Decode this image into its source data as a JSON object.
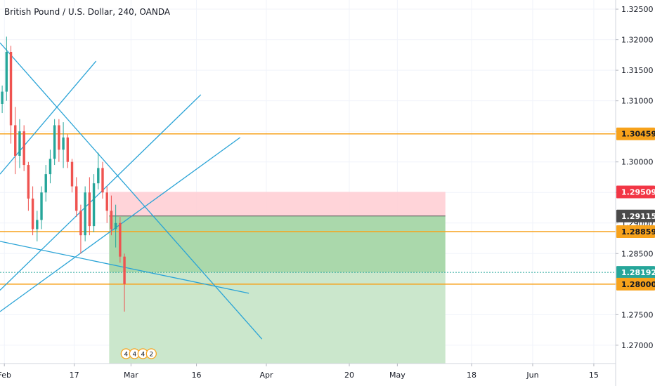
{
  "chart_data": {
    "type": "candlestick",
    "title": "British Pound / U.S. Dollar, 240, OANDA",
    "x_ticks": [
      {
        "date": "2020-02-01",
        "label": "Feb"
      },
      {
        "date": "2020-02-17",
        "label": "17"
      },
      {
        "date": "2020-03-01",
        "label": "Mar"
      },
      {
        "date": "2020-03-16",
        "label": "16"
      },
      {
        "date": "2020-04-01",
        "label": "Apr"
      },
      {
        "date": "2020-04-20",
        "label": "20"
      },
      {
        "date": "2020-05-01",
        "label": "May"
      },
      {
        "date": "2020-05-18",
        "label": "18"
      },
      {
        "date": "2020-06-01",
        "label": "Jun"
      },
      {
        "date": "2020-06-15",
        "label": "15"
      }
    ],
    "xlim": [
      "2020-01-31",
      "2020-06-20"
    ],
    "ylim": [
      1.267,
      1.3265
    ],
    "y_ticks": [
      {
        "value": 1.27,
        "label": "1.27000"
      },
      {
        "value": 1.275,
        "label": "1.27500"
      },
      {
        "value": 1.28,
        "label": "1.28000"
      },
      {
        "value": 1.285,
        "label": "1.28500"
      },
      {
        "value": 1.29,
        "label": "1.29000"
      },
      {
        "value": 1.295,
        "label": "1.29500"
      },
      {
        "value": 1.3,
        "label": "1.30000"
      },
      {
        "value": 1.305,
        "label": "1.30500"
      },
      {
        "value": 1.31,
        "label": "1.31000"
      },
      {
        "value": 1.315,
        "label": "1.31500"
      },
      {
        "value": 1.32,
        "label": "1.32000"
      },
      {
        "value": 1.325,
        "label": "1.32500"
      }
    ],
    "grid": true,
    "price_labels": [
      {
        "value": 1.30459,
        "label": "1.30459",
        "color": "#f7a21b",
        "text_color": "#131722"
      },
      {
        "value": 1.29509,
        "label": "1.29509",
        "color": "#f23645",
        "text_color": "#ffffff"
      },
      {
        "value": 1.29115,
        "label": "1.29115",
        "color": "#4a4a4a",
        "text_color": "#ffffff"
      },
      {
        "value": 1.28859,
        "label": "1.28859",
        "color": "#f7a21b",
        "text_color": "#131722"
      },
      {
        "value": 1.28192,
        "label": "1.28192",
        "color": "#26a69a",
        "text_color": "#ffffff"
      },
      {
        "value": 1.28,
        "label": "1.28000",
        "color": "#f7a21b",
        "text_color": "#131722"
      }
    ],
    "horizontal_levels": [
      {
        "value": 1.30459,
        "color": "#f7a21b",
        "style": "solid"
      },
      {
        "value": 1.28859,
        "color": "#f7a21b",
        "style": "solid"
      },
      {
        "value": 1.28,
        "color": "#f7a21b",
        "style": "solid"
      },
      {
        "value": 1.28192,
        "color": "#26a69a",
        "style": "dotted"
      }
    ],
    "position_box": {
      "start": "2020-02-25",
      "end": "2020-05-12",
      "entry": 1.29115,
      "stop": 1.29509,
      "target_1": 1.28192,
      "target_2": 1.267,
      "stop_color": "#ffcdd2",
      "target_color": "#a5d6a7",
      "target_color_2": "#c8e6c9"
    },
    "trend_lines": [
      {
        "x1": "2020-01-31",
        "y1": 1.3195,
        "x2": "2020-03-31",
        "y2": 1.271,
        "color": "#29a3d6"
      },
      {
        "x1": "2020-01-31",
        "y1": 1.298,
        "x2": "2020-02-22",
        "y2": 1.3165,
        "color": "#29a3d6"
      },
      {
        "x1": "2020-01-31",
        "y1": 1.279,
        "x2": "2020-03-17",
        "y2": 1.311,
        "color": "#29a3d6"
      },
      {
        "x1": "2020-01-31",
        "y1": 1.2755,
        "x2": "2020-03-26",
        "y2": 1.304,
        "color": "#29a3d6"
      },
      {
        "x1": "2020-01-31",
        "y1": 1.287,
        "x2": "2020-03-28",
        "y2": 1.2785,
        "color": "#29a3d6"
      }
    ],
    "candles": [
      {
        "date": "2020-01-31",
        "open": 1.3095,
        "high": 1.3125,
        "low": 1.308,
        "close": 1.3115
      },
      {
        "date": "2020-02-01",
        "open": 1.3115,
        "high": 1.3205,
        "low": 1.31,
        "close": 1.318
      },
      {
        "date": "2020-02-02",
        "open": 1.318,
        "high": 1.319,
        "low": 1.303,
        "close": 1.306
      },
      {
        "date": "2020-02-03",
        "open": 1.306,
        "high": 1.309,
        "low": 1.298,
        "close": 1.301
      },
      {
        "date": "2020-02-04",
        "open": 1.301,
        "high": 1.307,
        "low": 1.299,
        "close": 1.305
      },
      {
        "date": "2020-02-05",
        "open": 1.305,
        "high": 1.306,
        "low": 1.2985,
        "close": 1.2995
      },
      {
        "date": "2020-02-06",
        "open": 1.2995,
        "high": 1.3,
        "low": 1.292,
        "close": 1.294
      },
      {
        "date": "2020-02-07",
        "open": 1.294,
        "high": 1.296,
        "low": 1.288,
        "close": 1.289
      },
      {
        "date": "2020-02-08",
        "open": 1.289,
        "high": 1.292,
        "low": 1.287,
        "close": 1.2905
      },
      {
        "date": "2020-02-09",
        "open": 1.2905,
        "high": 1.296,
        "low": 1.289,
        "close": 1.295
      },
      {
        "date": "2020-02-10",
        "open": 1.295,
        "high": 1.2995,
        "low": 1.2935,
        "close": 1.298
      },
      {
        "date": "2020-02-11",
        "open": 1.298,
        "high": 1.302,
        "low": 1.2965,
        "close": 1.3005
      },
      {
        "date": "2020-02-12",
        "open": 1.3005,
        "high": 1.307,
        "low": 1.2995,
        "close": 1.306
      },
      {
        "date": "2020-02-13",
        "open": 1.306,
        "high": 1.307,
        "low": 1.3,
        "close": 1.302
      },
      {
        "date": "2020-02-14",
        "open": 1.302,
        "high": 1.3065,
        "low": 1.299,
        "close": 1.304
      },
      {
        "date": "2020-02-15",
        "open": 1.304,
        "high": 1.3045,
        "low": 1.299,
        "close": 1.3
      },
      {
        "date": "2020-02-16",
        "open": 1.3,
        "high": 1.3005,
        "low": 1.295,
        "close": 1.296
      },
      {
        "date": "2020-02-17",
        "open": 1.296,
        "high": 1.2975,
        "low": 1.291,
        "close": 1.292
      },
      {
        "date": "2020-02-18",
        "open": 1.292,
        "high": 1.293,
        "low": 1.285,
        "close": 1.288
      },
      {
        "date": "2020-02-19",
        "open": 1.288,
        "high": 1.296,
        "low": 1.287,
        "close": 1.295
      },
      {
        "date": "2020-02-20",
        "open": 1.295,
        "high": 1.2975,
        "low": 1.288,
        "close": 1.2895
      },
      {
        "date": "2020-02-21",
        "open": 1.2895,
        "high": 1.298,
        "low": 1.2885,
        "close": 1.2965
      },
      {
        "date": "2020-02-22",
        "open": 1.2965,
        "high": 1.3015,
        "low": 1.2955,
        "close": 1.299
      },
      {
        "date": "2020-02-23",
        "open": 1.299,
        "high": 1.3,
        "low": 1.294,
        "close": 1.295
      },
      {
        "date": "2020-02-24",
        "open": 1.295,
        "high": 1.296,
        "low": 1.29,
        "close": 1.292
      },
      {
        "date": "2020-02-25",
        "open": 1.292,
        "high": 1.2945,
        "low": 1.288,
        "close": 1.289
      },
      {
        "date": "2020-02-26",
        "open": 1.289,
        "high": 1.293,
        "low": 1.286,
        "close": 1.29
      },
      {
        "date": "2020-02-27",
        "open": 1.29,
        "high": 1.291,
        "low": 1.2835,
        "close": 1.2845
      },
      {
        "date": "2020-02-28",
        "open": 1.2845,
        "high": 1.285,
        "low": 1.2755,
        "close": 1.28
      }
    ],
    "annotations": [
      {
        "label": "4"
      },
      {
        "label": "4"
      },
      {
        "label": "4"
      },
      {
        "label": "2"
      }
    ]
  }
}
